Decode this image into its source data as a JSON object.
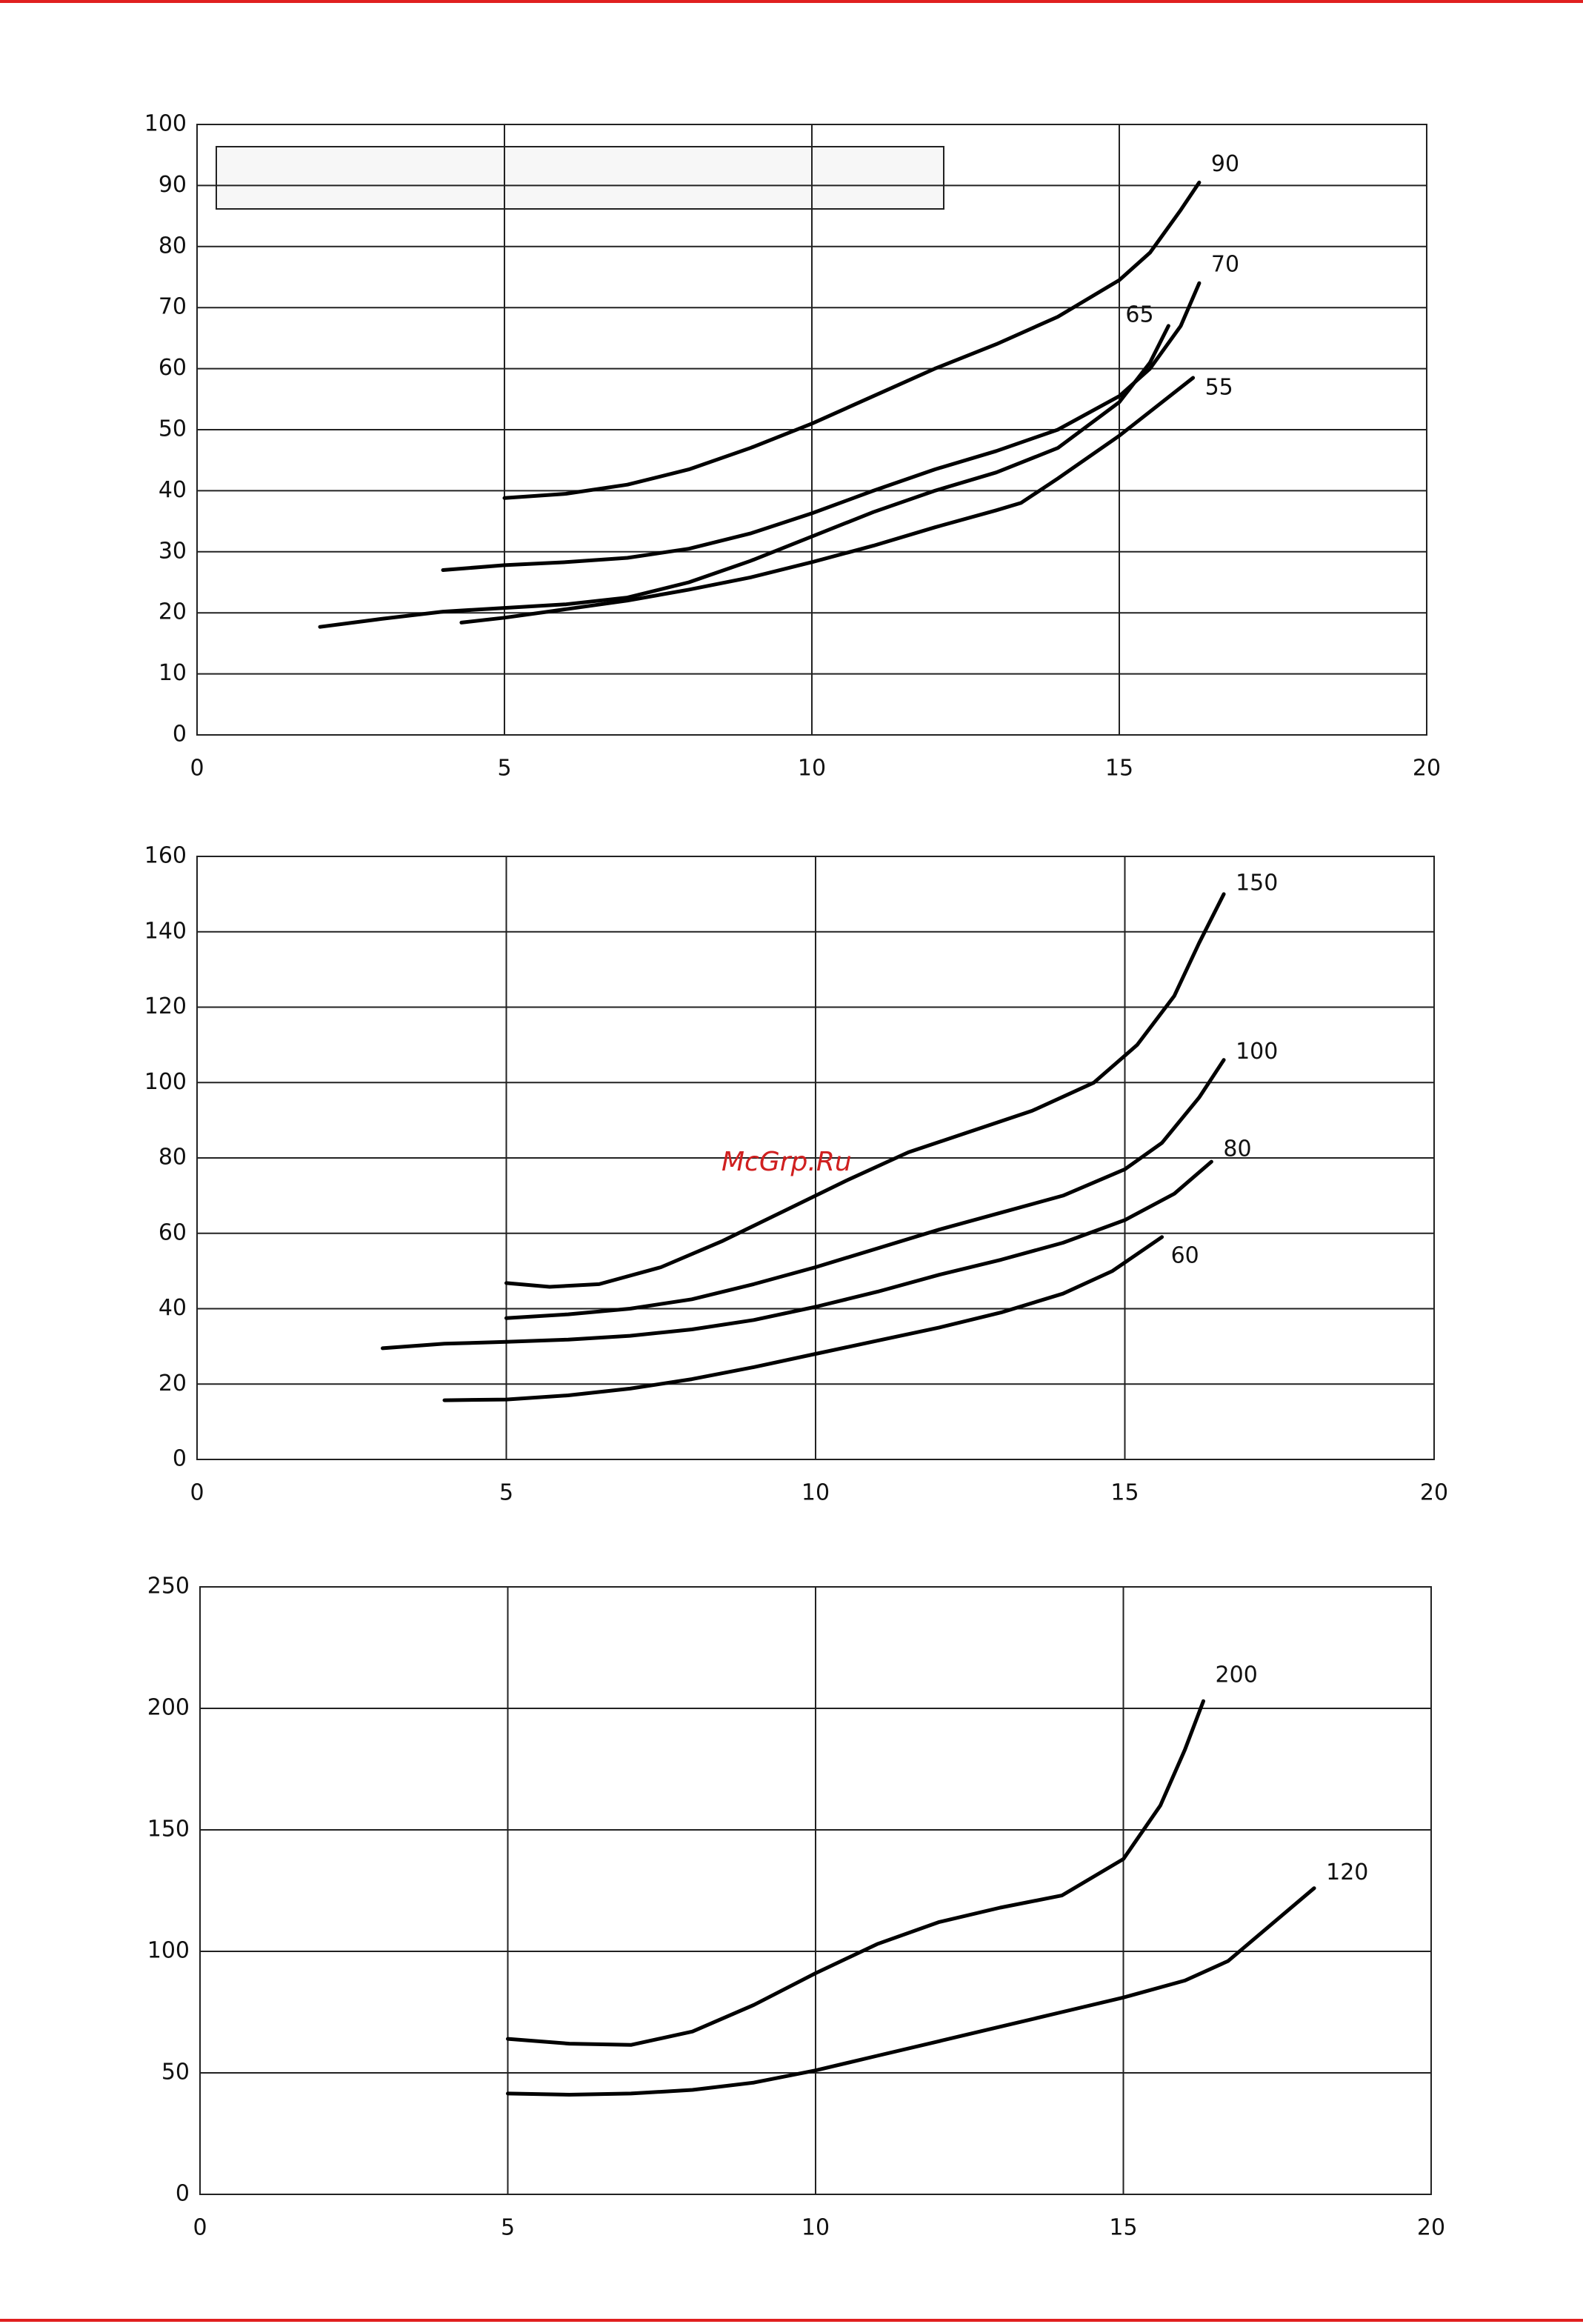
{
  "watermark": "McGrp.Ru",
  "chart_data": [
    {
      "type": "line",
      "grid": true,
      "xlim": [
        0,
        20
      ],
      "ylim": [
        0,
        100
      ],
      "xticks": [
        0,
        5,
        10,
        15,
        20
      ],
      "yticks": [
        0,
        10,
        20,
        30,
        40,
        50,
        60,
        70,
        80,
        90,
        100
      ],
      "series": [
        {
          "name": "90",
          "color": "#000000",
          "x": [
            5,
            6,
            7,
            8,
            9,
            10,
            11,
            12,
            13,
            14,
            15,
            15.5,
            16,
            16.3
          ],
          "values": [
            38.8,
            39.5,
            41,
            43.5,
            47,
            51,
            55.5,
            60,
            64,
            68.5,
            74.5,
            79,
            86,
            90.5
          ]
        },
        {
          "name": "70",
          "color": "#000000",
          "x": [
            4,
            5,
            6,
            7,
            8,
            9,
            10,
            11,
            12,
            13,
            14,
            15,
            15.5,
            16,
            16.3
          ],
          "values": [
            27,
            27.8,
            28.3,
            29,
            30.5,
            33,
            36.3,
            40,
            43.5,
            46.5,
            50,
            55.5,
            60,
            67,
            74
          ]
        },
        {
          "name": "65",
          "color": "#000000",
          "x": [
            2,
            3,
            4,
            5,
            6,
            7,
            8,
            9,
            10,
            11,
            12,
            13,
            14,
            15,
            15.5,
            15.8
          ],
          "values": [
            17.7,
            19,
            20.2,
            20.8,
            21.4,
            22.5,
            25,
            28.5,
            32.5,
            36.5,
            40,
            43,
            47,
            54.5,
            61,
            67
          ]
        },
        {
          "name": "55",
          "color": "#000000",
          "x": [
            4.3,
            5,
            6,
            7,
            8,
            9,
            10,
            11,
            12,
            13,
            13.4,
            14,
            15,
            16.2
          ],
          "values": [
            18.4,
            19.2,
            20.6,
            22,
            23.8,
            25.8,
            28.3,
            31,
            34,
            36.8,
            38,
            42,
            49,
            58.5
          ]
        }
      ]
    },
    {
      "type": "line",
      "grid": true,
      "xlim": [
        0,
        20
      ],
      "ylim": [
        0,
        160
      ],
      "xticks": [
        0,
        5,
        10,
        15,
        20
      ],
      "yticks": [
        0,
        20,
        40,
        60,
        80,
        100,
        120,
        140,
        160
      ],
      "series": [
        {
          "name": "150",
          "color": "#000000",
          "x": [
            5,
            5.7,
            6.5,
            7.5,
            8.5,
            9.5,
            10.5,
            11.5,
            12.5,
            13.5,
            14.5,
            15.2,
            15.8,
            16.2,
            16.6
          ],
          "values": [
            46.8,
            45.8,
            46.5,
            51,
            58,
            66,
            74,
            81.5,
            87,
            92.5,
            100,
            110,
            123,
            137,
            150
          ]
        },
        {
          "name": "100",
          "color": "#000000",
          "x": [
            5,
            6,
            7,
            8,
            9,
            10,
            11,
            12,
            13,
            14,
            15,
            15.6,
            16.2,
            16.6
          ],
          "values": [
            37.5,
            38.5,
            40,
            42.5,
            46.5,
            51,
            56,
            61,
            65.5,
            70,
            77,
            84,
            96,
            106
          ]
        },
        {
          "name": "80",
          "color": "#000000",
          "x": [
            3,
            4,
            5,
            6,
            7,
            8,
            9,
            10,
            11,
            12,
            13,
            14,
            15,
            15.8,
            16.4
          ],
          "values": [
            29.5,
            30.7,
            31.2,
            31.8,
            32.8,
            34.5,
            37,
            40.5,
            44.5,
            49,
            53,
            57.5,
            63.5,
            70.5,
            79
          ]
        },
        {
          "name": "60",
          "color": "#000000",
          "x": [
            4,
            5,
            6,
            7,
            8,
            9,
            10,
            11,
            12,
            13,
            14,
            14.8,
            15.6
          ],
          "values": [
            15.7,
            15.9,
            17,
            18.8,
            21.3,
            24.5,
            28,
            31.5,
            35,
            39,
            44,
            50,
            59
          ]
        }
      ]
    },
    {
      "type": "line",
      "grid": true,
      "xlim": [
        0,
        20
      ],
      "ylim": [
        0,
        250
      ],
      "xticks": [
        0,
        5,
        10,
        15,
        20
      ],
      "yticks": [
        0,
        50,
        100,
        150,
        200,
        250
      ],
      "series": [
        {
          "name": "200",
          "color": "#000000",
          "x": [
            5,
            6,
            7,
            8,
            9,
            10,
            11,
            12,
            13,
            14,
            15,
            15.6,
            16,
            16.3
          ],
          "values": [
            64,
            62,
            61.5,
            67,
            78,
            91,
            103,
            112,
            118,
            123,
            138,
            160,
            183,
            203
          ]
        },
        {
          "name": "120",
          "color": "#000000",
          "x": [
            5,
            6,
            7,
            8,
            9,
            10,
            11,
            12,
            13,
            14,
            15,
            16,
            16.7,
            18.1
          ],
          "values": [
            41.5,
            41,
            41.5,
            43,
            46,
            51,
            57,
            63,
            69,
            75,
            81,
            88,
            96,
            126
          ]
        }
      ]
    }
  ]
}
